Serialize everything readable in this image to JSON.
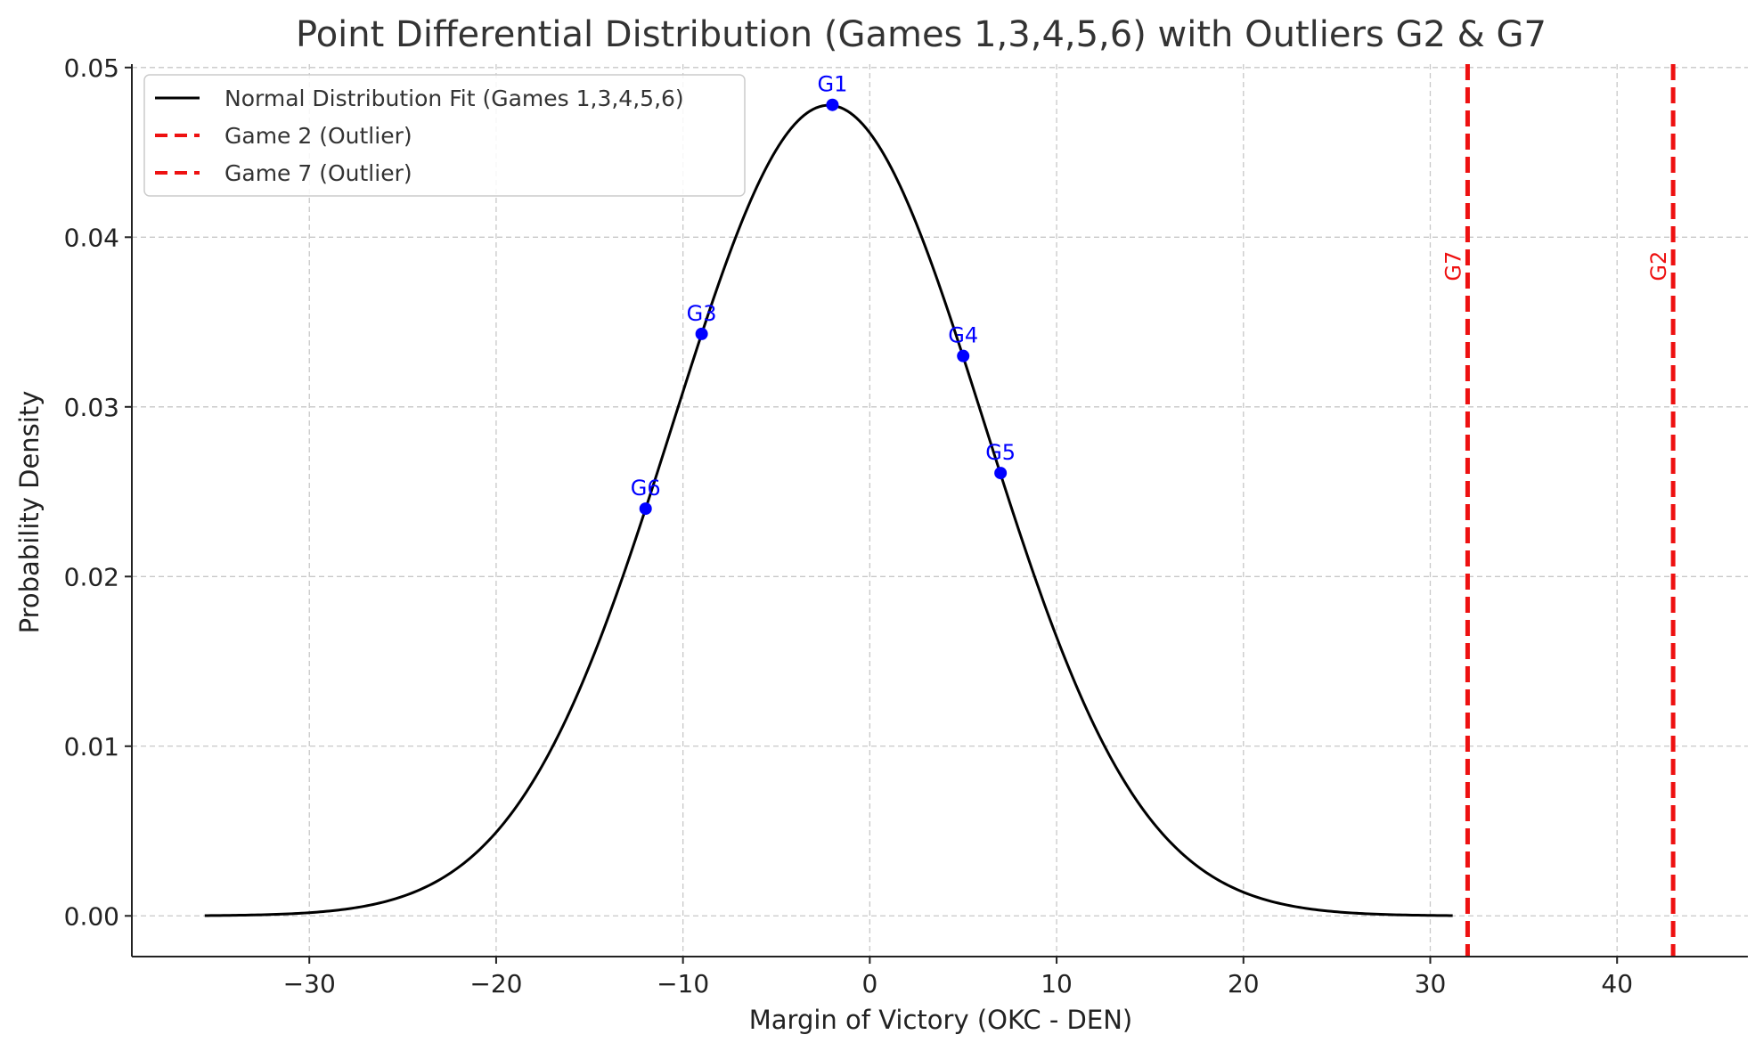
{
  "chart_data": {
    "type": "line",
    "title": "Point Differential Distribution (Games 1,3,4,5,6) with Outliers G2 & G7",
    "xlabel": "Margin of Victory (OKC - DEN)",
    "ylabel": "Probability Density",
    "xlim": [
      -39.5,
      47
    ],
    "ylim": [
      -0.0024,
      0.0502
    ],
    "x_ticks": [
      -30,
      -20,
      -10,
      0,
      10,
      20,
      30,
      40
    ],
    "x_tick_labels": [
      "−30",
      "−20",
      "−10",
      "0",
      "10",
      "20",
      "30",
      "40"
    ],
    "y_ticks": [
      0.0,
      0.01,
      0.02,
      0.03,
      0.04,
      0.05
    ],
    "y_tick_labels": [
      "0.00",
      "0.01",
      "0.02",
      "0.03",
      "0.04",
      "0.05"
    ],
    "grid": true,
    "legend_position": "top-left",
    "curve": {
      "name": "Normal Distribution Fit (Games 1,3,4,5,6)",
      "mean": -2.2,
      "std": 8.35,
      "x_range": [
        -35.6,
        31.2
      ],
      "color": "#000000"
    },
    "points": [
      {
        "label": "G1",
        "x": -2,
        "y": 0.0478
      },
      {
        "label": "G3",
        "x": -9,
        "y": 0.0343
      },
      {
        "label": "G4",
        "x": 5,
        "y": 0.033
      },
      {
        "label": "G5",
        "x": 7,
        "y": 0.0261
      },
      {
        "label": "G6",
        "x": -12,
        "y": 0.024
      }
    ],
    "point_color": "#0000ff",
    "outliers": [
      {
        "name": "Game 2 (Outlier)",
        "label": "G2",
        "x": 43
      },
      {
        "name": "Game 7 (Outlier)",
        "label": "G7",
        "x": 32
      }
    ],
    "outlier_color": "#ee1111"
  }
}
